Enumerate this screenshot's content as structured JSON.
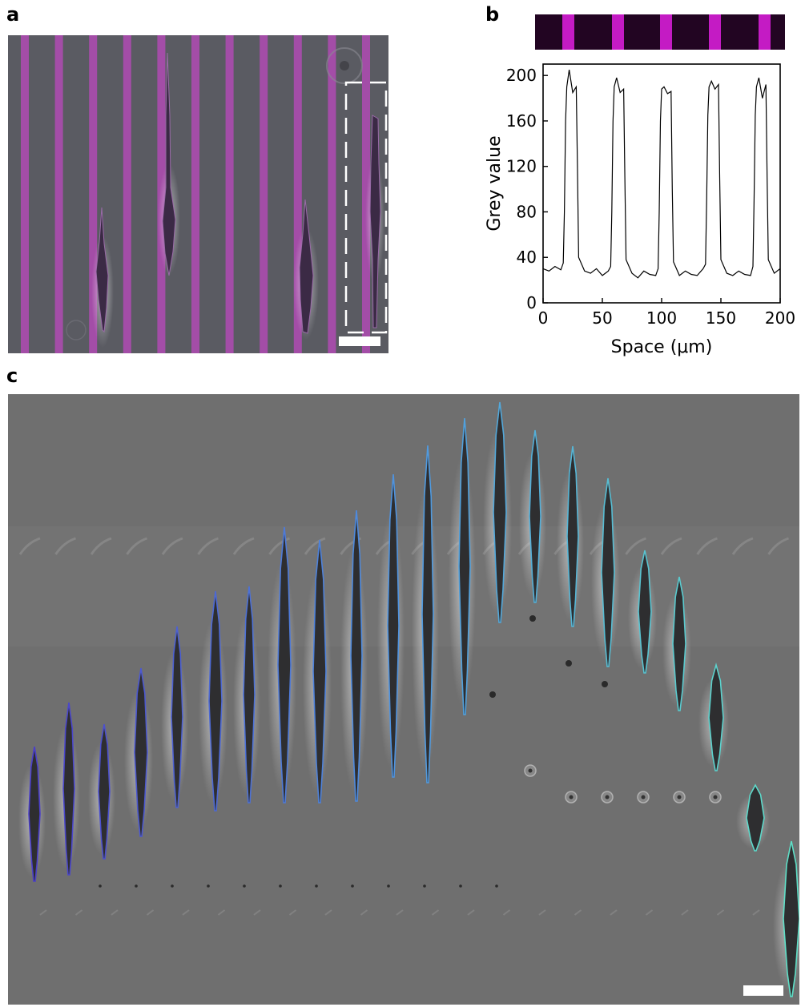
{
  "panels": {
    "a": {
      "label": "a"
    },
    "b": {
      "label": "b"
    },
    "c": {
      "label": "c"
    }
  },
  "colors": {
    "micrograph_bg": "#5a5b62",
    "stripe": "#b04bb4",
    "pattern_strip_bg": "#220522",
    "pattern_strip_band": "#c41bc4",
    "outline_start": "#4b3fc9",
    "outline_mid": "#4f97e0",
    "outline_end": "#5fe0c8",
    "line": "#000000",
    "scale_bar": "#ffffff",
    "phase_bg": "#6f6f6f"
  },
  "chart_data": {
    "type": "line",
    "xlabel": "Space (μm)",
    "ylabel": "Grey value",
    "xlim": [
      0,
      200
    ],
    "ylim": [
      0,
      210
    ],
    "x_ticks": [
      "0",
      "50",
      "100",
      "150",
      "200"
    ],
    "y_ticks": [
      "0",
      "40",
      "80",
      "120",
      "160",
      "200"
    ],
    "grid": false,
    "series": [
      {
        "x": [
          0,
          5,
          10,
          15,
          17,
          18,
          19,
          20,
          22,
          25,
          28,
          29,
          30,
          35,
          40,
          45,
          50,
          55,
          57,
          58,
          59,
          60,
          62,
          65,
          68,
          69,
          70,
          75,
          80,
          85,
          90,
          95,
          97,
          98,
          99,
          100,
          102,
          105,
          108,
          109,
          110,
          115,
          120,
          125,
          130,
          135,
          137,
          138,
          139,
          140,
          142,
          145,
          148,
          149,
          150,
          155,
          160,
          165,
          170,
          175,
          177,
          178,
          179,
          180,
          182,
          185,
          188,
          189,
          190,
          195,
          200
        ],
        "y": [
          30,
          28,
          32,
          29,
          35,
          80,
          160,
          190,
          205,
          185,
          190,
          120,
          40,
          28,
          26,
          30,
          24,
          28,
          32,
          80,
          160,
          190,
          198,
          185,
          188,
          110,
          38,
          26,
          22,
          28,
          25,
          24,
          30,
          80,
          160,
          188,
          190,
          184,
          186,
          100,
          36,
          24,
          28,
          25,
          24,
          30,
          34,
          90,
          165,
          190,
          195,
          188,
          192,
          110,
          38,
          26,
          24,
          28,
          25,
          24,
          32,
          90,
          165,
          190,
          198,
          180,
          192,
          110,
          38,
          26,
          30
        ]
      }
    ]
  }
}
